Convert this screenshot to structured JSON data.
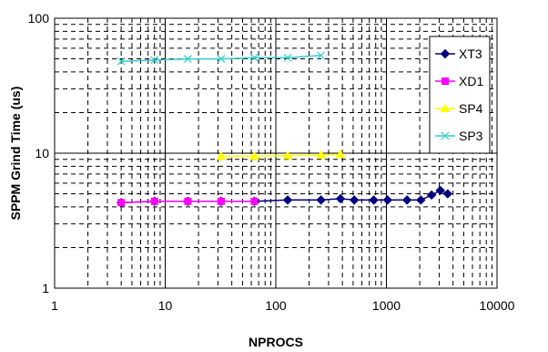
{
  "chart_data": {
    "type": "line",
    "x_scale": "log",
    "y_scale": "log",
    "xlim": [
      1,
      10000
    ],
    "ylim": [
      1,
      100
    ],
    "xlabel": "NPROCS",
    "ylabel": "SPPM Grind Time (us)",
    "x_tick_labels": [
      "1",
      "10",
      "100",
      "1000",
      "10000"
    ],
    "y_tick_labels": [
      "1",
      "10",
      "100"
    ],
    "grid": "major and minor, dashed minor",
    "legend_position": "right",
    "series": [
      {
        "name": "XT3",
        "color": "#000080",
        "marker": "diamond",
        "x": [
          4,
          8,
          16,
          32,
          64,
          128,
          256,
          384,
          512,
          768,
          1024,
          1536,
          2048,
          2560,
          3072,
          3584
        ],
        "y": [
          4.3,
          4.4,
          4.4,
          4.4,
          4.4,
          4.5,
          4.5,
          4.6,
          4.5,
          4.5,
          4.5,
          4.5,
          4.5,
          4.9,
          5.3,
          5.0
        ]
      },
      {
        "name": "XD1",
        "color": "#FF00FF",
        "marker": "square",
        "x": [
          4,
          8,
          16,
          32,
          64
        ],
        "y": [
          4.3,
          4.4,
          4.4,
          4.4,
          4.4
        ]
      },
      {
        "name": "SP4",
        "color": "#FFFF00",
        "marker": "triangle",
        "x": [
          32,
          64,
          128,
          256,
          384
        ],
        "y": [
          9.5,
          9.5,
          9.6,
          9.7,
          9.8
        ]
      },
      {
        "name": "SP3",
        "color": "#33CCCC",
        "marker": "x",
        "x": [
          4,
          8,
          16,
          32,
          64,
          128,
          256
        ],
        "y": [
          48,
          49,
          50,
          50,
          51,
          51,
          53
        ]
      }
    ]
  }
}
